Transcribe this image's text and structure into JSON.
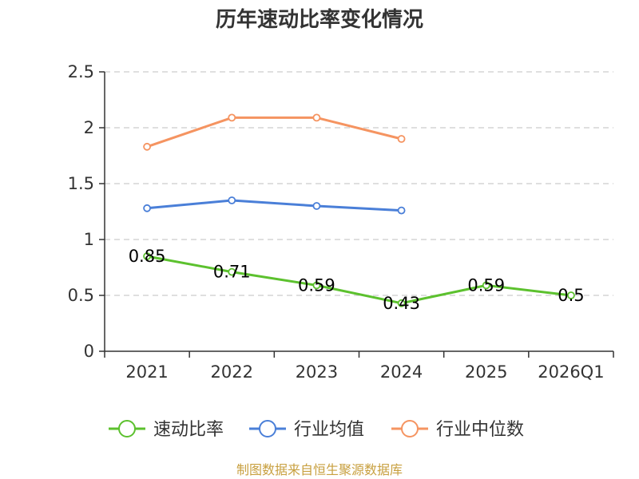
{
  "chart_data": {
    "type": "line",
    "title": "历年速动比率变化情况",
    "categories": [
      "2021",
      "2022",
      "2023",
      "2024",
      "2025",
      "2026Q1"
    ],
    "ylim": [
      0,
      2.5
    ],
    "yticks": [
      "0",
      "0.5",
      "1",
      "1.5",
      "2",
      "2.5"
    ],
    "grid": true,
    "legend_position": "bottom",
    "series": [
      {
        "name": "速动比率",
        "color": "#5cc12e",
        "values": [
          0.85,
          0.71,
          0.59,
          0.43,
          0.59,
          0.5
        ],
        "labels": [
          "0.85",
          "0.71",
          "0.59",
          "0.43",
          "0.59",
          "0.5"
        ]
      },
      {
        "name": "行业均值",
        "color": "#4a7fd8",
        "values": [
          1.28,
          1.35,
          1.3,
          1.26,
          null,
          null
        ]
      },
      {
        "name": "行业中位数",
        "color": "#f59461",
        "values": [
          1.83,
          2.09,
          2.09,
          1.9,
          null,
          null
        ]
      }
    ]
  },
  "footer": {
    "source": "制图数据来自恒生聚源数据库"
  }
}
